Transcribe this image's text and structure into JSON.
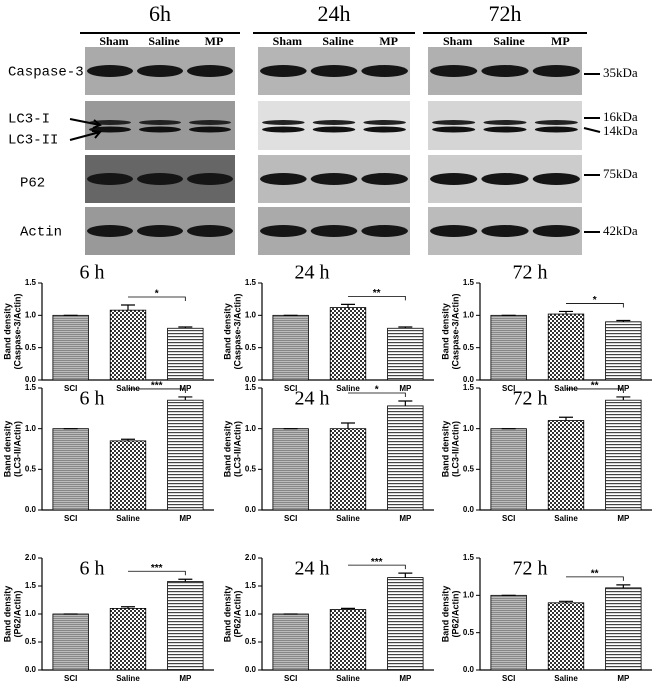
{
  "blot": {
    "time_points": [
      "6h",
      "24h",
      "72h"
    ],
    "lanes": [
      "Sham",
      "Saline",
      "MP"
    ],
    "rows": [
      "Caspase-3",
      "LC3-I",
      "LC3-II",
      "P62",
      "Actin"
    ],
    "markers": [
      "35kDa",
      "16kDa",
      "14kDa",
      "75kDa",
      "42kDa"
    ]
  },
  "chart_data": [
    {
      "type": "bar",
      "title": "6 h",
      "ylabel": [
        "Band density",
        "(Caspase-3/Actin)"
      ],
      "categories": [
        "SCI",
        "Saline",
        "MP"
      ],
      "values": [
        1.0,
        1.08,
        0.8
      ],
      "errors": [
        0,
        0.08,
        0.02
      ],
      "annotation": "*",
      "ylim": [
        0,
        1.5
      ],
      "yticks": [
        {
          "value": 0,
          "label": "0.0"
        },
        {
          "value": 0.5,
          "label": "0.5"
        },
        {
          "value": 1,
          "label": "1.0"
        },
        {
          "value": 1.5,
          "label": "1.5"
        }
      ]
    },
    {
      "type": "bar",
      "title": "24 h",
      "ylabel": [
        "Band density",
        "(Caspase-3/Actin)"
      ],
      "categories": [
        "SCI",
        "Saline",
        "MP"
      ],
      "values": [
        1.0,
        1.12,
        0.8
      ],
      "errors": [
        0,
        0.05,
        0.02
      ],
      "annotation": "**",
      "ylim": [
        0,
        1.5
      ],
      "yticks": [
        {
          "value": 0,
          "label": "0.0"
        },
        {
          "value": 0.5,
          "label": "0.5"
        },
        {
          "value": 1,
          "label": "1.0"
        },
        {
          "value": 1.5,
          "label": "1.5"
        }
      ]
    },
    {
      "type": "bar",
      "title": "72 h",
      "ylabel": [
        "Band density",
        "(Caspase-3/Actin)"
      ],
      "categories": [
        "SCI",
        "Saline",
        "MP"
      ],
      "values": [
        1.0,
        1.02,
        0.9
      ],
      "errors": [
        0,
        0.04,
        0.02
      ],
      "annotation": "*",
      "ylim": [
        0,
        1.5
      ],
      "yticks": [
        {
          "value": 0,
          "label": "0.0"
        },
        {
          "value": 0.5,
          "label": "0.5"
        },
        {
          "value": 1,
          "label": "1.0"
        },
        {
          "value": 1.5,
          "label": "1.5"
        }
      ]
    },
    {
      "type": "bar",
      "title": "6 h",
      "ylabel": [
        "Band density",
        "(LC3-II/Actin)"
      ],
      "categories": [
        "SCI",
        "Saline",
        "MP"
      ],
      "values": [
        1.0,
        0.85,
        1.35
      ],
      "errors": [
        0,
        0.02,
        0.04
      ],
      "annotation": "***",
      "ylim": [
        0,
        1.5
      ],
      "yticks": [
        {
          "value": 0,
          "label": "0.0"
        },
        {
          "value": 0.5,
          "label": "0.5"
        },
        {
          "value": 1,
          "label": "1.0"
        },
        {
          "value": 1.5,
          "label": "1.5"
        }
      ]
    },
    {
      "type": "bar",
      "title": "24 h",
      "ylabel": [
        "Band density",
        "(LC3-II/Actin)"
      ],
      "categories": [
        "SCI",
        "Saline",
        "MP"
      ],
      "values": [
        1.0,
        1.0,
        1.28
      ],
      "errors": [
        0,
        0.07,
        0.06
      ],
      "annotation": "*",
      "ylim": [
        0,
        1.5
      ],
      "yticks": [
        {
          "value": 0,
          "label": "0.0"
        },
        {
          "value": 0.5,
          "label": "0.5"
        },
        {
          "value": 1,
          "label": "1.0"
        },
        {
          "value": 1.5,
          "label": "1.5"
        }
      ]
    },
    {
      "type": "bar",
      "title": "72 h",
      "ylabel": [
        "Band density",
        "(LC3-II/Actin)"
      ],
      "categories": [
        "SCI",
        "Saline",
        "MP"
      ],
      "values": [
        1.0,
        1.1,
        1.35
      ],
      "errors": [
        0,
        0.04,
        0.04
      ],
      "annotation": "**",
      "ylim": [
        0,
        1.5
      ],
      "yticks": [
        {
          "value": 0,
          "label": "0.0"
        },
        {
          "value": 0.5,
          "label": "0.5"
        },
        {
          "value": 1,
          "label": "1.0"
        },
        {
          "value": 1.5,
          "label": "1.5"
        }
      ]
    },
    {
      "type": "bar",
      "title": "6 h",
      "ylabel": [
        "Band density",
        "(P62/Actin)"
      ],
      "categories": [
        "SCI",
        "Saline",
        "MP"
      ],
      "values": [
        1.0,
        1.1,
        1.58
      ],
      "errors": [
        0,
        0.03,
        0.04
      ],
      "annotation": "***",
      "ylim": [
        0,
        2
      ],
      "yticks": [
        {
          "value": 0,
          "label": "0.0"
        },
        {
          "value": 0.5,
          "label": "0.5"
        },
        {
          "value": 1,
          "label": "1.0"
        },
        {
          "value": 1.5,
          "label": "1.5"
        },
        {
          "value": 2,
          "label": "2.0"
        }
      ]
    },
    {
      "type": "bar",
      "title": "24 h",
      "ylabel": [
        "Band density",
        "(P62/Actin)"
      ],
      "categories": [
        "SCI",
        "Saline",
        "MP"
      ],
      "values": [
        1.0,
        1.08,
        1.65
      ],
      "errors": [
        0,
        0.02,
        0.08
      ],
      "annotation": "***",
      "ylim": [
        0,
        2
      ],
      "yticks": [
        {
          "value": 0,
          "label": "0.0"
        },
        {
          "value": 0.5,
          "label": "0.5"
        },
        {
          "value": 1,
          "label": "1.0"
        },
        {
          "value": 1.5,
          "label": "1.5"
        },
        {
          "value": 2,
          "label": "2.0"
        }
      ]
    },
    {
      "type": "bar",
      "title": "72 h",
      "ylabel": [
        "Band density",
        "(P62/Actin)"
      ],
      "categories": [
        "SCI",
        "Saline",
        "MP"
      ],
      "values": [
        1.0,
        0.9,
        1.1
      ],
      "errors": [
        0,
        0.02,
        0.04
      ],
      "annotation": "**",
      "ylim": [
        0,
        1.5
      ],
      "yticks": [
        {
          "value": 0,
          "label": "0.0"
        },
        {
          "value": 0.5,
          "label": "0.5"
        },
        {
          "value": 1,
          "label": "1.0"
        },
        {
          "value": 1.5,
          "label": "1.5"
        }
      ]
    }
  ]
}
